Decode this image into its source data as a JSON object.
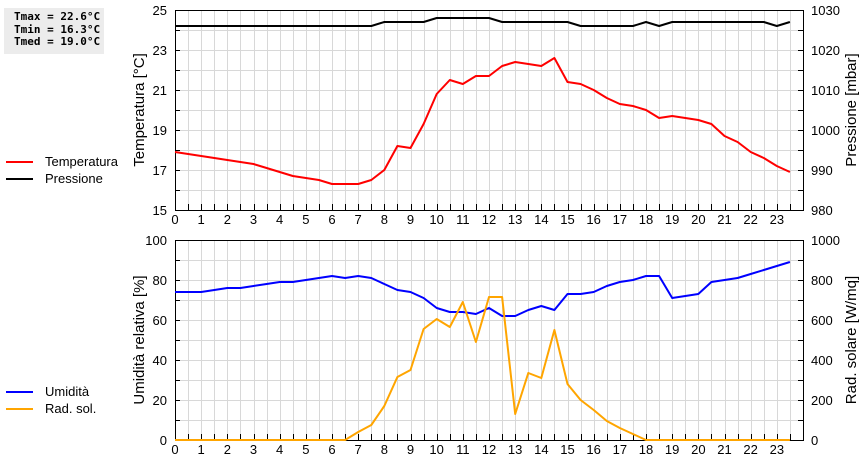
{
  "stats": {
    "tmax": "Tmax = 22.6°C",
    "tmin": "Tmin = 16.3°C",
    "tmed": "Tmed = 19.0°C"
  },
  "legend_top": [
    {
      "label": "Temperatura",
      "color": "#ff0000"
    },
    {
      "label": "Pressione",
      "color": "#000000"
    }
  ],
  "legend_bottom": [
    {
      "label": "Umidità",
      "color": "#0000ff"
    },
    {
      "label": "Rad. sol.",
      "color": "#ffa500"
    }
  ],
  "chart_data": [
    {
      "type": "line",
      "title": "",
      "xlabel": "",
      "ylabel": "Temperatura [°C]",
      "y2label": "Pressione [mbar]",
      "x": [
        0,
        0.5,
        1,
        1.5,
        2,
        2.5,
        3,
        3.5,
        4,
        4.5,
        5,
        5.5,
        6,
        6.5,
        7,
        7.5,
        8,
        8.5,
        9,
        9.5,
        10,
        10.5,
        11,
        11.5,
        12,
        12.5,
        13,
        13.5,
        14,
        14.5,
        15,
        15.5,
        16,
        16.5,
        17,
        17.5,
        18,
        18.5,
        19,
        19.5,
        20,
        20.5,
        21,
        21.5,
        22,
        22.5,
        23,
        23.5
      ],
      "xlim": [
        0,
        24
      ],
      "xticks": [
        "0",
        "1",
        "2",
        "3",
        "4",
        "5",
        "6",
        "7",
        "8",
        "9",
        "10",
        "11",
        "12",
        "13",
        "14",
        "15",
        "16",
        "17",
        "18",
        "19",
        "20",
        "21",
        "22",
        "23"
      ],
      "ylim": [
        15,
        25
      ],
      "yticks": [
        "15",
        "17",
        "19",
        "21",
        "23",
        "25"
      ],
      "y2lim": [
        980,
        1030
      ],
      "y2ticks": [
        "980",
        "990",
        "1000",
        "1010",
        "1020",
        "1030"
      ],
      "grid": true,
      "legend_position": "left",
      "series": [
        {
          "name": "Temperatura",
          "axis": "left",
          "color": "#ff0000",
          "values": [
            17.9,
            17.8,
            17.7,
            17.6,
            17.5,
            17.4,
            17.3,
            17.1,
            16.9,
            16.7,
            16.6,
            16.5,
            16.3,
            16.3,
            16.3,
            16.5,
            17.0,
            18.2,
            18.1,
            19.3,
            20.8,
            21.5,
            21.3,
            21.7,
            21.7,
            22.2,
            22.4,
            22.3,
            22.2,
            22.6,
            21.4,
            21.3,
            21.0,
            20.6,
            20.3,
            20.2,
            20.0,
            19.6,
            19.7,
            19.6,
            19.5,
            19.3,
            18.7,
            18.4,
            17.9,
            17.6,
            17.2,
            16.9
          ]
        },
        {
          "name": "Pressione",
          "axis": "right",
          "color": "#000000",
          "values": [
            1026,
            1026,
            1026,
            1026,
            1026,
            1026,
            1026,
            1026,
            1026,
            1026,
            1026,
            1026,
            1026,
            1026,
            1026,
            1026,
            1027,
            1027,
            1027,
            1027,
            1028,
            1028,
            1028,
            1028,
            1028,
            1027,
            1027,
            1027,
            1027,
            1027,
            1027,
            1026,
            1026,
            1026,
            1026,
            1026,
            1027,
            1026,
            1027,
            1027,
            1027,
            1027,
            1027,
            1027,
            1027,
            1027,
            1026,
            1027
          ]
        }
      ]
    },
    {
      "type": "line",
      "title": "",
      "xlabel": "",
      "ylabel": "Umidità relativa [%]",
      "y2label": "Rad. solare [W/mq]",
      "x": [
        0,
        0.5,
        1,
        1.5,
        2,
        2.5,
        3,
        3.5,
        4,
        4.5,
        5,
        5.5,
        6,
        6.5,
        7,
        7.5,
        8,
        8.5,
        9,
        9.5,
        10,
        10.5,
        11,
        11.5,
        12,
        12.5,
        13,
        13.5,
        14,
        14.5,
        15,
        15.5,
        16,
        16.5,
        17,
        17.5,
        18,
        18.5,
        19,
        19.5,
        20,
        20.5,
        21,
        21.5,
        22,
        22.5,
        23,
        23.5
      ],
      "xlim": [
        0,
        24
      ],
      "xticks": [
        "0",
        "1",
        "2",
        "3",
        "4",
        "5",
        "6",
        "7",
        "8",
        "9",
        "10",
        "11",
        "12",
        "13",
        "14",
        "15",
        "16",
        "17",
        "18",
        "19",
        "20",
        "21",
        "22",
        "23"
      ],
      "ylim": [
        0,
        100
      ],
      "yticks": [
        "0",
        "20",
        "40",
        "60",
        "80",
        "100"
      ],
      "y2lim": [
        0,
        1000
      ],
      "y2ticks": [
        "0",
        "200",
        "400",
        "600",
        "800",
        "1000"
      ],
      "grid": true,
      "legend_position": "left",
      "series": [
        {
          "name": "Umidità",
          "axis": "left",
          "color": "#0000ff",
          "values": [
            74,
            74,
            74,
            75,
            76,
            76,
            77,
            78,
            79,
            79,
            80,
            81,
            82,
            81,
            82,
            81,
            78,
            75,
            74,
            71,
            66,
            64,
            64,
            63,
            66,
            62,
            62,
            65,
            67,
            65,
            73,
            73,
            74,
            77,
            79,
            80,
            82,
            82,
            71,
            72,
            73,
            79,
            80,
            81,
            83,
            85,
            87,
            89
          ]
        },
        {
          "name": "Rad. sol.",
          "axis": "right",
          "color": "#ffa500",
          "values": [
            0,
            0,
            0,
            0,
            0,
            0,
            0,
            0,
            0,
            0,
            0,
            0,
            0,
            0,
            40,
            75,
            170,
            315,
            350,
            555,
            605,
            565,
            690,
            490,
            715,
            715,
            130,
            335,
            310,
            550,
            280,
            200,
            150,
            95,
            60,
            30,
            0,
            0,
            0,
            0,
            0,
            0,
            0,
            0,
            0,
            0,
            0,
            0
          ]
        }
      ]
    }
  ]
}
